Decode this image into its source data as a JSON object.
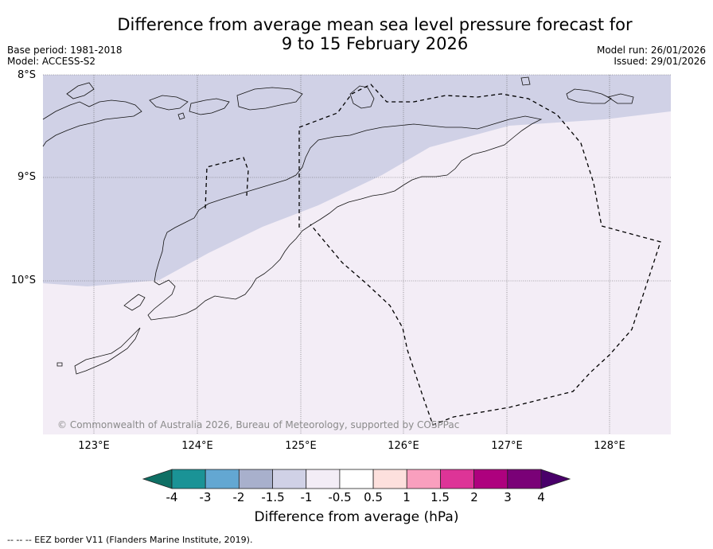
{
  "title": {
    "line1": "Difference from average mean sea level pressure forecast for",
    "line2": "9 to 15 February 2026"
  },
  "meta": {
    "base_period": "Base period: 1981-2018",
    "model": "Model: ACCESS-S2",
    "model_run": "Model run: 26/01/2026",
    "issued": "Issued: 29/01/2026"
  },
  "map": {
    "lat_labels": [
      "8°S",
      "9°S",
      "10°S"
    ],
    "lon_labels": [
      "123°E",
      "124°E",
      "125°E",
      "126°E",
      "127°E",
      "128°E"
    ],
    "copyright": "© Commonwealth of Australia 2026, Bureau of Meteorology, supported by COSPPac",
    "regions": [
      {
        "category": "-1.5 to -1",
        "color": "#d0d1e6"
      },
      {
        "category": "-1 to -0.5",
        "color": "#f3edf6"
      }
    ]
  },
  "colorbar": {
    "label": "Difference from average (hPa)",
    "ticks": [
      "-4",
      "-3",
      "-2",
      "-1.5",
      "-1",
      "-0.5",
      "0.5",
      "1",
      "1.5",
      "2",
      "3",
      "4"
    ],
    "colors": [
      "#0e6f64",
      "#1a9396",
      "#63a7d2",
      "#a8b0cc",
      "#d0d1e6",
      "#f3edf6",
      "#ffffff",
      "#fde0dd",
      "#f99fbe",
      "#dd3497",
      "#ae017e",
      "#7a0177",
      "#49006a"
    ]
  },
  "footnote": "--  --  -- EEZ border V11 (Flanders Marine Institute, 2019)."
}
